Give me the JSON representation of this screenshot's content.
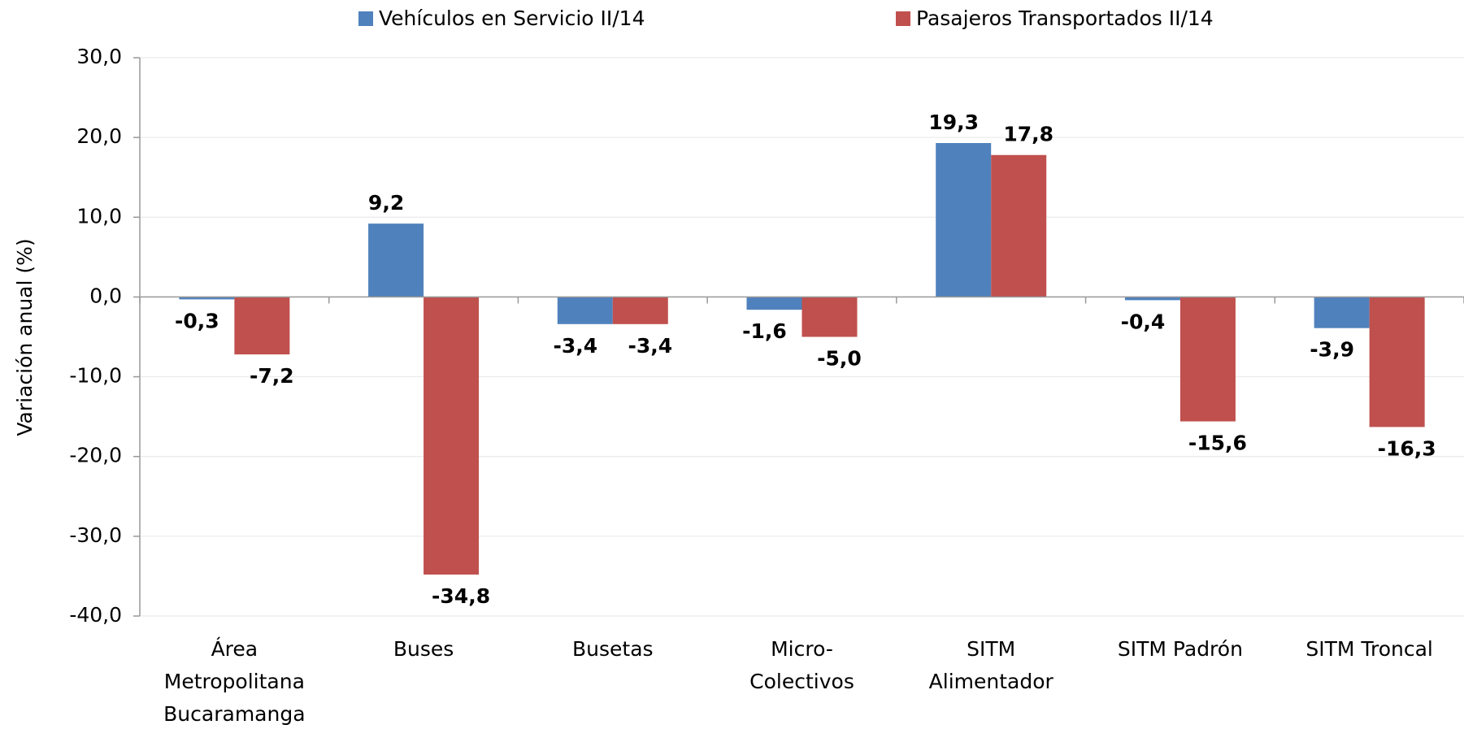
{
  "chart_data": {
    "type": "bar",
    "y_label": "Variación anual (%)",
    "categories": [
      "Área\nMetropolitana\nBucaramanga",
      "Buses",
      "Busetas",
      "Micro-\nColectivos",
      "SITM\nAlimentador",
      "SITM Padrón",
      "SITM Troncal"
    ],
    "series": [
      {
        "name": "Vehículos en Servicio II/14",
        "color": "#4f81bd",
        "label_color": "#3b64a0",
        "values": [
          -0.3,
          9.2,
          -3.4,
          -1.6,
          19.3,
          -0.4,
          -3.9
        ],
        "value_labels": [
          "-0,3",
          "9,2",
          "-3,4",
          "-1,6",
          "19,3",
          "-0,4",
          "-3,9"
        ]
      },
      {
        "name": "Pasajeros Transportados II/14",
        "color": "#c0504d",
        "label_color": "#c00000",
        "values": [
          -7.2,
          -34.8,
          -3.4,
          -5.0,
          17.8,
          -15.6,
          -16.3
        ],
        "value_labels": [
          "-7,2",
          "-34,8",
          "-3,4",
          "-5,0",
          "17,8",
          "-15,6",
          "-16,3"
        ]
      }
    ],
    "ylim": [
      -40,
      30
    ],
    "yticks": [
      {
        "value": -40,
        "label": "-40,0"
      },
      {
        "value": -30,
        "label": "-30,0"
      },
      {
        "value": -20,
        "label": "-20,0"
      },
      {
        "value": -10,
        "label": "-10,0"
      },
      {
        "value": 0,
        "label": "0,0"
      },
      {
        "value": 10,
        "label": "10,0"
      },
      {
        "value": 20,
        "label": "20,0"
      },
      {
        "value": 30,
        "label": "30,0"
      }
    ],
    "grid": true
  }
}
